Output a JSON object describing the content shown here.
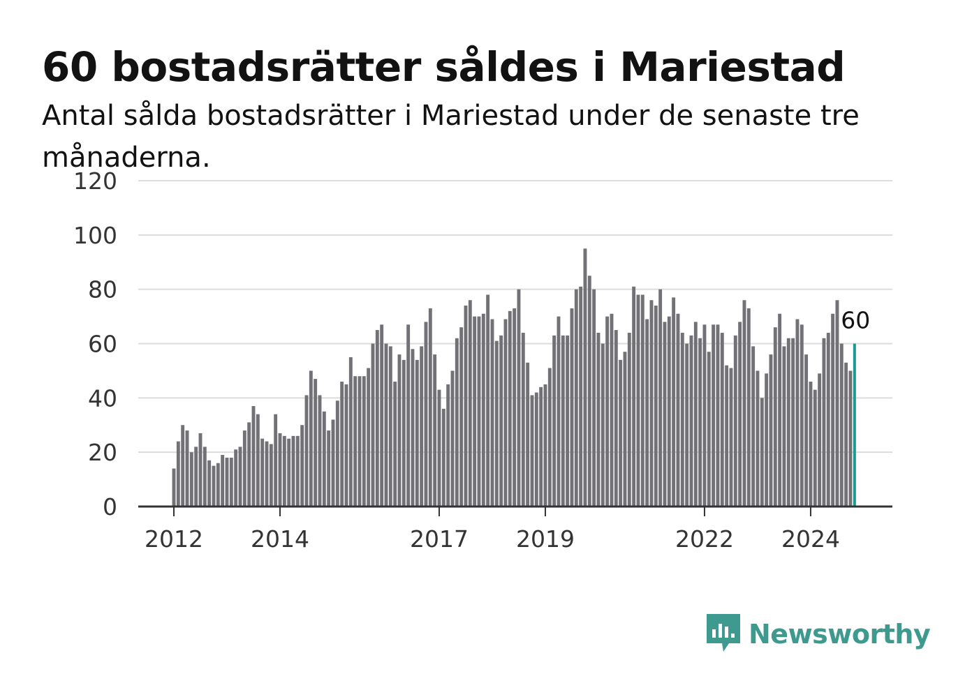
{
  "title": "60 bostadsrätter såldes i Mariestad",
  "subtitle": "Antal sålda bostadsrätter i Mariestad under de senaste tre månaderna.",
  "brand": {
    "name": "Newsworthy",
    "icon": "newsworthy-logo-icon",
    "color": "#3e9a8e"
  },
  "chart_data": {
    "type": "bar",
    "title": "60 bostadsrätter såldes i Mariestad",
    "subtitle": "Antal sålda bostadsrätter i Mariestad under de senaste tre månaderna.",
    "ylim": [
      0,
      120
    ],
    "yticks": [
      0,
      20,
      40,
      60,
      80,
      100,
      120
    ],
    "grid": true,
    "x_start": "2012-01",
    "xtick_labels": [
      "2012",
      "2014",
      "2017",
      "2019",
      "2022",
      "2024"
    ],
    "xtick_index": [
      0,
      24,
      60,
      84,
      120,
      144
    ],
    "bar_color": "#727176",
    "highlight_color": "#1b9a8f",
    "highlight_label": "60",
    "values": [
      14,
      24,
      30,
      28,
      20,
      22,
      27,
      22,
      17,
      15,
      16,
      19,
      18,
      18,
      21,
      22,
      28,
      31,
      37,
      34,
      25,
      24,
      23,
      34,
      27,
      26,
      25,
      26,
      26,
      30,
      41,
      50,
      47,
      41,
      35,
      28,
      32,
      39,
      46,
      45,
      55,
      48,
      48,
      48,
      51,
      60,
      65,
      67,
      60,
      59,
      46,
      56,
      54,
      67,
      58,
      54,
      59,
      68,
      73,
      56,
      43,
      36,
      45,
      50,
      62,
      66,
      74,
      76,
      70,
      70,
      71,
      78,
      69,
      61,
      63,
      69,
      72,
      73,
      80,
      64,
      53,
      41,
      42,
      44,
      45,
      51,
      63,
      70,
      63,
      63,
      73,
      80,
      81,
      95,
      85,
      80,
      64,
      60,
      70,
      71,
      65,
      54,
      57,
      64,
      81,
      78,
      78,
      69,
      76,
      74,
      80,
      68,
      70,
      77,
      71,
      64,
      60,
      63,
      68,
      62,
      67,
      57,
      67,
      67,
      64,
      52,
      51,
      63,
      68,
      76,
      73,
      59,
      50,
      40,
      49,
      56,
      66,
      71,
      59,
      62,
      62,
      69,
      67,
      56,
      46,
      43,
      49,
      62,
      64,
      71,
      76,
      60,
      53,
      50,
      60
    ]
  }
}
